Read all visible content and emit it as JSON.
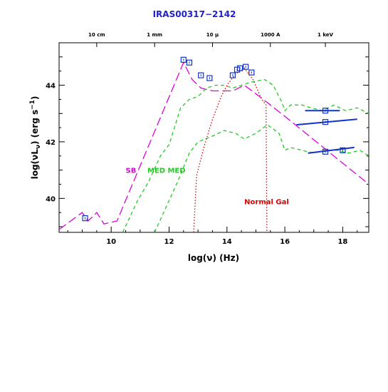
{
  "chart_data": {
    "type": "line",
    "title": "IRAS00317−2142",
    "xlabel": "log(ν) (Hz)",
    "ylabel_parts": [
      "log(νL",
      "ν",
      ") (erg s",
      "−1",
      ")"
    ],
    "xlim": [
      8.2,
      18.9
    ],
    "ylim": [
      38.8,
      45.5
    ],
    "x_ticks": [
      10,
      12,
      14,
      16,
      18
    ],
    "x_tick_labels": [
      "10",
      "12",
      "14",
      "16",
      "18"
    ],
    "y_ticks": [
      40,
      42,
      44
    ],
    "y_tick_labels": [
      "40",
      "42",
      "44"
    ],
    "top_axis_labels": [
      {
        "x": 9.5,
        "label": "10 cm"
      },
      {
        "x": 11.5,
        "label": "1 mm"
      },
      {
        "x": 13.5,
        "label": "10 μ"
      },
      {
        "x": 15.5,
        "label": "1000 A"
      },
      {
        "x": 17.4,
        "label": "1 keV"
      }
    ],
    "series": [
      {
        "name": "SB",
        "color": "#dd00dd",
        "dash": "long",
        "points": [
          [
            8.2,
            38.9
          ],
          [
            9.0,
            39.5
          ],
          [
            9.2,
            39.2
          ],
          [
            9.5,
            39.5
          ],
          [
            9.75,
            39.1
          ],
          [
            10.2,
            39.2
          ],
          [
            12.5,
            44.8
          ],
          [
            12.8,
            44.2
          ],
          [
            13.1,
            43.9
          ],
          [
            13.5,
            43.8
          ],
          [
            14.0,
            43.8
          ],
          [
            14.2,
            43.8
          ],
          [
            14.6,
            44.0
          ],
          [
            15.0,
            43.7
          ],
          [
            15.5,
            43.3
          ],
          [
            16.0,
            42.9
          ],
          [
            18.9,
            40.5
          ]
        ]
      },
      {
        "name": "MED",
        "color": "#22cc22",
        "dash": "short",
        "points": [
          [
            10.4,
            38.8
          ],
          [
            10.9,
            39.9
          ],
          [
            11.3,
            40.6
          ],
          [
            11.7,
            41.5
          ],
          [
            12.0,
            41.9
          ],
          [
            12.4,
            43.2
          ],
          [
            12.7,
            43.5
          ],
          [
            13.0,
            43.6
          ],
          [
            13.3,
            43.9
          ],
          [
            13.6,
            44.0
          ],
          [
            13.9,
            44.0
          ],
          [
            14.2,
            43.9
          ],
          [
            14.5,
            44.0
          ],
          [
            14.8,
            44.1
          ],
          [
            15.3,
            44.2
          ],
          [
            15.6,
            44.0
          ],
          [
            15.9,
            43.4
          ],
          [
            16.0,
            43.1
          ],
          [
            16.2,
            43.3
          ],
          [
            16.6,
            43.3
          ],
          [
            16.9,
            43.2
          ],
          [
            17.3,
            43.1
          ],
          [
            17.7,
            43.3
          ],
          [
            18.1,
            43.1
          ],
          [
            18.5,
            43.2
          ],
          [
            18.9,
            43.0
          ]
        ]
      },
      {
        "name": "MED",
        "color": "#22cc22",
        "dash": "short",
        "points": [
          [
            11.5,
            38.8
          ],
          [
            11.9,
            39.7
          ],
          [
            12.3,
            40.6
          ],
          [
            12.7,
            41.6
          ],
          [
            13.0,
            42.0
          ],
          [
            13.5,
            42.2
          ],
          [
            13.9,
            42.4
          ],
          [
            14.3,
            42.3
          ],
          [
            14.6,
            42.1
          ],
          [
            15.0,
            42.3
          ],
          [
            15.4,
            42.6
          ],
          [
            15.8,
            42.3
          ],
          [
            16.0,
            41.7
          ],
          [
            16.2,
            41.8
          ],
          [
            16.6,
            41.7
          ],
          [
            17.0,
            41.6
          ],
          [
            17.4,
            41.7
          ],
          [
            17.8,
            41.7
          ],
          [
            18.2,
            41.6
          ],
          [
            18.6,
            41.7
          ],
          [
            18.9,
            41.5
          ]
        ]
      },
      {
        "name": "Normal Gal",
        "color": "#dd0000",
        "dash": "dot",
        "points": [
          [
            12.85,
            38.8
          ],
          [
            12.95,
            40.8
          ],
          [
            13.2,
            41.8
          ],
          [
            13.5,
            42.8
          ],
          [
            13.8,
            43.6
          ],
          [
            14.0,
            44.0
          ],
          [
            14.3,
            44.4
          ],
          [
            14.6,
            44.6
          ],
          [
            14.9,
            44.2
          ],
          [
            15.2,
            43.5
          ],
          [
            15.35,
            43.3
          ],
          [
            15.38,
            38.8
          ]
        ]
      }
    ],
    "observations": [
      {
        "x": 9.1,
        "y": 39.3
      },
      {
        "x": 12.5,
        "y": 44.9
      },
      {
        "x": 12.7,
        "y": 44.8
      },
      {
        "x": 13.1,
        "y": 44.35
      },
      {
        "x": 13.4,
        "y": 44.25
      },
      {
        "x": 14.2,
        "y": 44.35
      },
      {
        "x": 14.35,
        "y": 44.55
      },
      {
        "x": 14.45,
        "y": 44.6
      },
      {
        "x": 14.65,
        "y": 44.65
      },
      {
        "x": 14.85,
        "y": 44.45
      },
      {
        "x": 17.4,
        "y": 43.1
      },
      {
        "x": 17.4,
        "y": 42.7
      },
      {
        "x": 17.4,
        "y": 41.65
      },
      {
        "x": 18.0,
        "y": 41.7
      }
    ],
    "xray_ranges": [
      {
        "x": [
          16.7,
          17.9
        ],
        "y": [
          43.1,
          43.1
        ]
      },
      {
        "x": [
          16.4,
          18.5
        ],
        "y": [
          42.6,
          42.8
        ]
      },
      {
        "x": [
          16.8,
          18.4
        ],
        "y": [
          41.6,
          41.8
        ]
      }
    ],
    "annotations": [
      {
        "text": "SB",
        "x": 10.5,
        "y": 40.9,
        "color": "#dd00dd"
      },
      {
        "text": "MED",
        "x": 11.25,
        "y": 40.9,
        "color": "#22cc22"
      },
      {
        "text": "MED",
        "x": 11.95,
        "y": 40.9,
        "color": "#22cc22"
      },
      {
        "text": "Normal Gal",
        "x": 14.6,
        "y": 39.8,
        "color": "#dd0000"
      }
    ],
    "grid": false
  }
}
